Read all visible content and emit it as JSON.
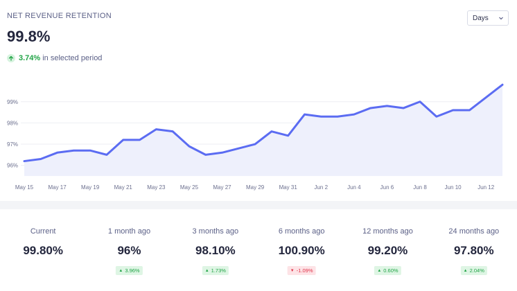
{
  "header": {
    "title": "NET REVENUE RETENTION",
    "value": "99.8%",
    "change_pct": "3.74%",
    "change_text": "in selected period"
  },
  "period_select": {
    "selected": "Days"
  },
  "colors": {
    "line": "#5b6cf2",
    "area": "#eef0fc",
    "grid": "#edeef3",
    "positive": "#22a447",
    "negative": "#e0334a"
  },
  "chart_data": {
    "type": "area",
    "x": [
      "May 15",
      "May 16",
      "May 17",
      "May 18",
      "May 19",
      "May 20",
      "May 21",
      "May 22",
      "May 23",
      "May 24",
      "May 25",
      "May 26",
      "May 27",
      "May 28",
      "May 29",
      "May 30",
      "May 31",
      "Jun 1",
      "Jun 2",
      "Jun 3",
      "Jun 4",
      "Jun 5",
      "Jun 6",
      "Jun 7",
      "Jun 8",
      "Jun 9",
      "Jun 10",
      "Jun 11",
      "Jun 12",
      "Jun 13"
    ],
    "values": [
      96.2,
      96.3,
      96.6,
      96.7,
      96.7,
      96.5,
      97.2,
      97.2,
      97.7,
      97.6,
      96.9,
      96.5,
      96.6,
      96.8,
      97.0,
      97.6,
      97.4,
      98.4,
      98.3,
      98.3,
      98.4,
      98.7,
      98.8,
      98.7,
      99.0,
      98.3,
      98.6,
      98.6,
      99.2,
      99.8
    ],
    "x_tick_labels": [
      "May 15",
      "May 17",
      "May 19",
      "May 21",
      "May 23",
      "May 25",
      "May 27",
      "May 29",
      "May 31",
      "Jun 2",
      "Jun 4",
      "Jun 6",
      "Jun 8",
      "Jun 10",
      "Jun 12"
    ],
    "y_ticks": [
      96,
      97,
      98,
      99
    ],
    "y_tick_labels": [
      "96%",
      "97%",
      "98%",
      "99%"
    ],
    "ylim": [
      95.5,
      100.2
    ],
    "grid": true
  },
  "stats": [
    {
      "label": "Current",
      "value": "99.80%",
      "badge": null
    },
    {
      "label": "1 month ago",
      "value": "96%",
      "badge": "3.96%",
      "direction": "up"
    },
    {
      "label": "3 months ago",
      "value": "98.10%",
      "badge": "1.73%",
      "direction": "up"
    },
    {
      "label": "6 months ago",
      "value": "100.90%",
      "badge": "-1.09%",
      "direction": "down"
    },
    {
      "label": "12 months ago",
      "value": "99.20%",
      "badge": "0.60%",
      "direction": "up"
    },
    {
      "label": "24 months ago",
      "value": "97.80%",
      "badge": "2.04%",
      "direction": "up"
    }
  ]
}
